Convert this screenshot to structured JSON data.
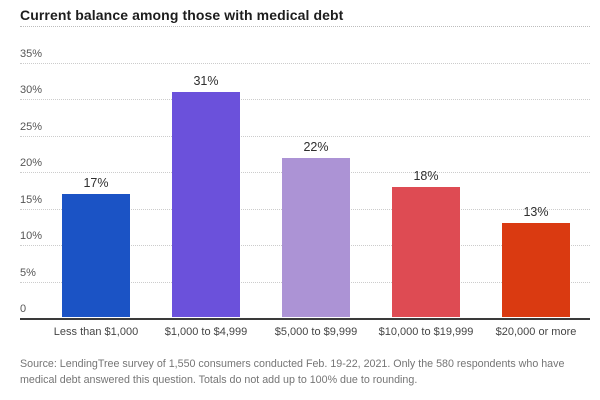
{
  "header": {
    "title": "Current balance among those with medical debt"
  },
  "chart_data": {
    "type": "bar",
    "title": "Current balance among those with medical debt",
    "categories": [
      "Less than $1,000",
      "$1,000 to $4,999",
      "$5,000 to $9,999",
      "$10,000 to $19,999",
      "$20,000 or more"
    ],
    "values": [
      17,
      31,
      22,
      18,
      13
    ],
    "value_labels": [
      "17%",
      "31%",
      "22%",
      "18%",
      "13%"
    ],
    "bar_colors": [
      "#1b53c5",
      "#6b51db",
      "#ac93d5",
      "#de4b53",
      "#da3a11"
    ],
    "xlabel": "",
    "ylabel": "",
    "ylim": [
      0,
      35
    ],
    "ytick_step": 5,
    "ytick_labels": [
      "0",
      "5%",
      "10%",
      "15%",
      "20%",
      "25%",
      "30%",
      "35%"
    ],
    "grid": "horizontal-dotted",
    "legend": "none"
  },
  "footer": {
    "source_note": "Source: LendingTree survey of 1,550 consumers conducted Feb. 19-22, 2021. Only the 580 respondents who have medical debt answered this question. Totals do not add up to 100% due to rounding."
  }
}
